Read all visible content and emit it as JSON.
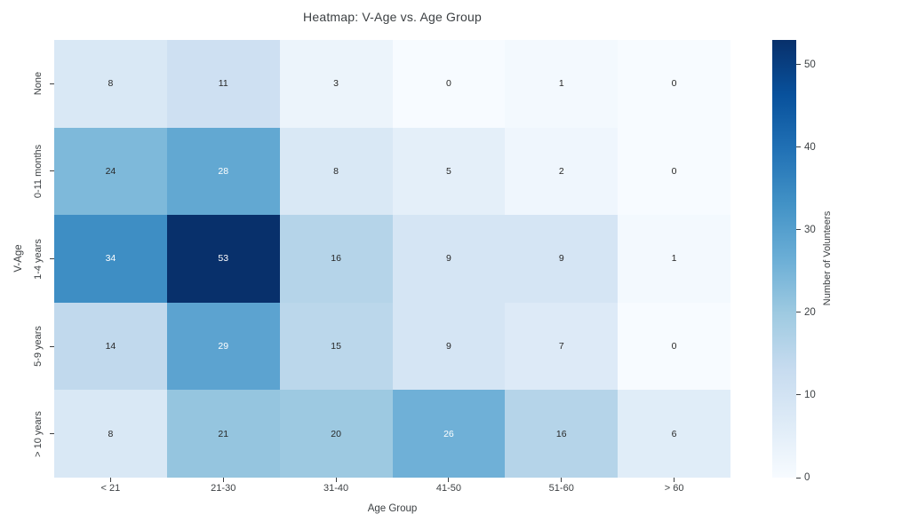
{
  "chart_data": {
    "type": "heatmap",
    "title": "Heatmap: V-Age vs. Age Group",
    "xlabel": "Age Group",
    "ylabel": "V-Age",
    "colorbar_label": "Number of Volunteers",
    "columns": [
      "< 21",
      "21-30",
      "31-40",
      "41-50",
      "51-60",
      "> 60"
    ],
    "rows": [
      "None",
      "0-11 months",
      "1-4 years",
      "5-9 years",
      "> 10 years"
    ],
    "values": [
      [
        8,
        11,
        3,
        0,
        1,
        0
      ],
      [
        24,
        28,
        8,
        5,
        2,
        0
      ],
      [
        34,
        53,
        16,
        9,
        9,
        1
      ],
      [
        14,
        29,
        15,
        9,
        7,
        0
      ],
      [
        8,
        21,
        20,
        26,
        16,
        6
      ]
    ],
    "vmin": 0,
    "vmax": 53,
    "colorbar_ticks": [
      0,
      10,
      20,
      30,
      40,
      50
    ],
    "colormap": "Blues",
    "colormap_anchors": [
      "#f7fbff",
      "#deebf7",
      "#c6dbef",
      "#9ecae1",
      "#6baed6",
      "#4292c6",
      "#2171b5",
      "#08519c",
      "#08306b"
    ],
    "annotation_text_dark": "#262626",
    "annotation_text_light": "#ffffff",
    "legend_position": "right",
    "grid": false
  }
}
